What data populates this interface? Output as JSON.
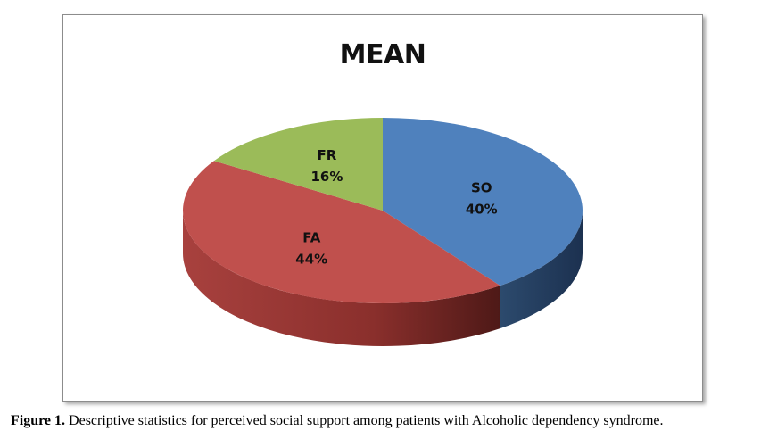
{
  "chart_data": {
    "type": "pie",
    "title": "MEAN",
    "slices": [
      {
        "label": "SO",
        "value": 40,
        "percent_label": "40%",
        "color": "#4f81bd",
        "side_color": "#25405f"
      },
      {
        "label": "FA",
        "value": 44,
        "percent_label": "44%",
        "color": "#c0504d",
        "side_color": "#8a2f2c"
      },
      {
        "label": "FR",
        "value": 16,
        "percent_label": "16%",
        "color": "#9bbb59",
        "side_color": "#6d8a36"
      }
    ],
    "legend": "none",
    "style": "3d"
  },
  "caption": {
    "label": "Figure 1.",
    "text": " Descriptive statistics for perceived social support among patients with Alcoholic dependency syndrome."
  }
}
